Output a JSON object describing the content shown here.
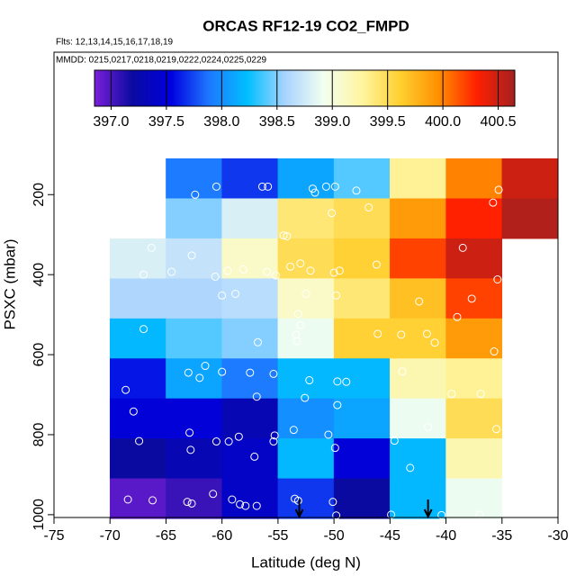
{
  "chart_data": {
    "type": "heatmap",
    "title": "ORCAS RF12-19 CO2_FMPD",
    "subtitle": "Flts: 12,13,14,15,16,17,18,19",
    "annotation": "MMDD: 0215,0217,0218,0219,0222,0224,0225,0229",
    "xlabel": "Latitude (deg N)",
    "ylabel": "PSXC (mbar)",
    "xlim": [
      -75,
      -30
    ],
    "xticks": [
      -75,
      -70,
      -65,
      -60,
      -55,
      -50,
      -45,
      -40,
      -35,
      -30
    ],
    "ylim": [
      1007,
      -156
    ],
    "yticks": [
      200,
      400,
      600,
      800,
      1000
    ],
    "x_edges": [
      -70,
      -65,
      -60,
      -55,
      -50,
      -45,
      -40,
      -35,
      -30
    ],
    "y_edges": [
      110,
      210,
      310,
      410,
      510,
      610,
      710,
      810,
      910,
      1010
    ],
    "values": [
      [
        null,
        397.9,
        397.7,
        398.1,
        398.4,
        399.3,
        400.0,
        400.5
      ],
      [
        null,
        398.5,
        398.8,
        399.4,
        399.5,
        399.9,
        400.3,
        400.6
      ],
      [
        398.8,
        398.7,
        399.1,
        399.5,
        399.6,
        400.2,
        400.5,
        null
      ],
      [
        398.6,
        398.6,
        398.65,
        399.1,
        399.4,
        399.7,
        400.2,
        null
      ],
      [
        398.2,
        398.4,
        398.5,
        398.9,
        399.6,
        399.6,
        399.9,
        null
      ],
      [
        397.6,
        398.1,
        397.9,
        398.2,
        398.2,
        399.2,
        399.3,
        null
      ],
      [
        397.5,
        397.5,
        397.3,
        398.0,
        398.1,
        398.9,
        399.5,
        null
      ],
      [
        397.2,
        397.3,
        397.4,
        398.2,
        397.5,
        398.2,
        399.2,
        null
      ],
      [
        396.95,
        397.05,
        397.4,
        397.7,
        397.2,
        398.2,
        398.9,
        null
      ]
    ],
    "clim": [
      396.85,
      400.65
    ],
    "colorscale": [
      "#7a1fd8",
      "#0a0aa0",
      "#0000e0",
      "#1e78ff",
      "#00bfff",
      "#aad4ff",
      "#f2fff0",
      "#fff5a0",
      "#ffd030",
      "#ff9000",
      "#ff2000",
      "#a52020"
    ],
    "cticks": [
      {
        "value": 397.0,
        "label": "397.0"
      },
      {
        "value": 397.5,
        "label": "397.5"
      },
      {
        "value": 398.0,
        "label": "398.0"
      },
      {
        "value": 398.5,
        "label": "398.5"
      },
      {
        "value": 399.0,
        "label": "399.0"
      },
      {
        "value": 399.5,
        "label": "399.5"
      },
      {
        "value": 400.0,
        "label": "400.0"
      },
      {
        "value": 400.5,
        "label": "400.5"
      }
    ],
    "points": {
      "color": "#ffffff",
      "x": [
        -62.4,
        -60.5,
        -56.4,
        -55.9,
        -51.9,
        -51.7,
        -50.7,
        -49.9,
        -48.0,
        -35.3,
        -35.8,
        -46.9,
        -50.2,
        -54.5,
        -54.2,
        -66.3,
        -38.5,
        -67.0,
        -64.5,
        -62.7,
        -60.6,
        -59.5,
        -58.1,
        -56.0,
        -55.2,
        -53.9,
        -52.1,
        -53.0,
        -50.0,
        -49.5,
        -46.2,
        -35.4,
        -60.0,
        -58.8,
        -52.5,
        -49.8,
        -42.4,
        -37.7,
        -39.0,
        -53.2,
        -53.0,
        -53.4,
        -67.0,
        -56.8,
        -53.3,
        -46.1,
        -44.0,
        -41.7,
        -41.0,
        -35.7,
        -61.5,
        -63.0,
        -60.0,
        -57.5,
        -62.0,
        -55.4,
        -68.6,
        -56.9,
        -52.6,
        -52.2,
        -49.7,
        -48.9,
        -43.9,
        -39.5,
        -36.9,
        -67.9,
        -49.7,
        -67.4,
        -62.9,
        -60.5,
        -58.5,
        -55.3,
        -59.4,
        -55.4,
        -53.6,
        -50.5,
        -49.9,
        -44.6,
        -41.6,
        -35.5,
        -62.8,
        -57.1,
        -43.2,
        -68.4,
        -66.2,
        -63.1,
        -62.7,
        -60.8,
        -59.1,
        -58.4,
        -57.9,
        -56.9,
        -53.5,
        -53.2,
        -50.1,
        -49.8,
        -44.9,
        -40.4,
        -37.0
      ],
      "y": [
        200,
        180,
        180,
        180,
        185,
        195,
        180,
        180,
        190,
        188,
        220,
        232,
        246,
        302,
        304,
        333,
        333,
        400,
        393,
        352,
        405,
        390,
        387,
        393,
        402,
        380,
        390,
        372,
        395,
        390,
        375,
        412,
        452,
        448,
        448,
        452,
        467,
        460,
        506,
        498,
        526,
        550,
        536,
        569,
        566,
        548,
        550,
        548,
        570,
        592,
        628,
        645,
        643,
        645,
        658,
        648,
        688,
        705,
        708,
        664,
        667,
        668,
        642,
        698,
        698,
        742,
        726,
        816,
        795,
        817,
        805,
        802,
        817,
        817,
        788,
        800,
        833,
        815,
        781,
        786,
        838,
        855,
        883,
        962,
        964,
        968,
        972,
        948,
        962,
        974,
        978,
        978,
        960,
        965,
        968,
        1002,
        1000,
        1001,
        1000
      ]
    },
    "arrows_x": [
      -53.1,
      -41.6
    ]
  }
}
